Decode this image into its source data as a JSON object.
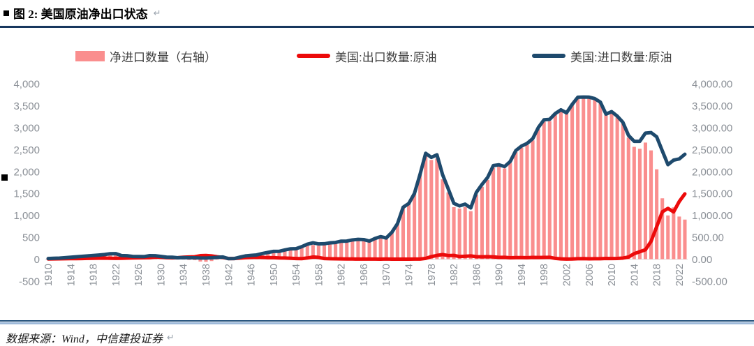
{
  "page": {
    "bullet": "■",
    "title": "图 2: 美国原油净出口状态",
    "return_mark": "↵"
  },
  "legend": {
    "items": [
      {
        "label": "净进口数量（右轴）",
        "type": "bar",
        "color": "#FA8E8E"
      },
      {
        "label": "美国:出口数量:原油",
        "type": "line",
        "color": "#EC0A0A"
      },
      {
        "label": "美国:进口数量:原油",
        "type": "line",
        "color": "#1E4A6D"
      }
    ]
  },
  "footer": {
    "source": "数据来源：Wind，中信建投证券",
    "return_mark": "↵"
  },
  "chart_data": {
    "type": "combo",
    "title": "美国原油净出口状态",
    "grid": "off",
    "legend_position": "top",
    "x_start_year": 1910,
    "x_end_year": 2023,
    "x_tick_labels": [
      "1910",
      "1914",
      "1918",
      "1922",
      "1926",
      "1930",
      "1934",
      "1938",
      "1942",
      "1946",
      "1950",
      "1954",
      "1958",
      "1962",
      "1966",
      "1970",
      "1974",
      "1978",
      "1982",
      "1986",
      "1990",
      "1994",
      "1998",
      "2002",
      "2006",
      "2010",
      "2014",
      "2018",
      "2022"
    ],
    "left_axis": {
      "min": -500,
      "max": 4000,
      "step": 500,
      "ticks": [
        "4,000",
        "3,500",
        "3,000",
        "2,500",
        "2,000",
        "1,500",
        "1,000",
        "500",
        "0",
        "-500"
      ]
    },
    "right_axis": {
      "min": -500,
      "max": 4000,
      "step": 500,
      "ticks": [
        "4,000.00",
        "3,500.00",
        "3,000.00",
        "2,500.00",
        "2,000.00",
        "1,500.00",
        "1,000.00",
        "500.00",
        "0.00",
        "-500.00"
      ]
    },
    "axis_text_color": "#8a8f96",
    "series": [
      {
        "name": "净进口数量（右轴）",
        "type": "bar",
        "axis": "right",
        "color": "#FA8E8E",
        "values": [
          10,
          14,
          17,
          25,
          33,
          42,
          50,
          57,
          65,
          73,
          81,
          105,
          109,
          62,
          53,
          34,
          30,
          26,
          45,
          31,
          17,
          12,
          15,
          -3,
          -9,
          -18,
          -23,
          -53,
          -59,
          -42,
          -12,
          11,
          -3,
          -1,
          20,
          39,
          46,
          52,
          89,
          119,
          143,
          151,
          183,
          216,
          224,
          273,
          314,
          323,
          308,
          337,
          362,
          373,
          405,
          408,
          435,
          449,
          444,
          409,
          470,
          513,
          478,
          612,
          810,
          1183,
          1268,
          1496,
          1932,
          2396,
          2262,
          2294,
          1821,
          1522,
          1186,
          1155,
          1188,
          1094,
          1469,
          1651,
          1808,
          2081,
          2111,
          2069,
          2194,
          2441,
          2542,
          2604,
          2708,
          2963,
          3138,
          3144,
          3302,
          3398,
          3333,
          3524,
          3682,
          3684,
          3684,
          3651,
          3571,
          3291,
          3348,
          3244,
          3095,
          2772,
          2561,
          2517,
          2658,
          2480,
          2049,
          1388,
          997,
          1181,
          972,
          903
        ]
      },
      {
        "name": "美国:出口数量:原油",
        "type": "line",
        "axis": "left",
        "color": "#EC0A0A",
        "values": [
          5,
          6,
          8,
          10,
          12,
          13,
          15,
          18,
          20,
          22,
          25,
          20,
          18,
          20,
          25,
          28,
          30,
          32,
          35,
          48,
          45,
          35,
          30,
          35,
          45,
          50,
          55,
          80,
          85,
          75,
          55,
          40,
          15,
          15,
          25,
          35,
          40,
          45,
          40,
          35,
          35,
          28,
          27,
          20,
          15,
          12,
          28,
          50,
          40,
          15,
          10,
          8,
          6,
          5,
          4,
          3,
          3,
          3,
          2,
          1,
          5,
          1,
          1,
          1,
          1,
          2,
          3,
          18,
          58,
          86,
          105,
          83,
          87,
          60,
          66,
          74,
          56,
          55,
          56,
          52,
          40,
          42,
          32,
          36,
          36,
          35,
          40,
          39,
          40,
          43,
          18,
          7,
          3,
          4,
          10,
          12,
          9,
          10,
          10,
          16,
          15,
          17,
          25,
          49,
          126,
          170,
          216,
          406,
          740,
          1080,
          1158,
          1077,
          1314,
          1489
        ]
      },
      {
        "name": "美国:进口数量:原油",
        "type": "line",
        "axis": "left",
        "color": "#1E4A6D",
        "values": [
          15,
          20,
          25,
          35,
          45,
          55,
          65,
          75,
          85,
          95,
          106,
          125,
          127,
          82,
          78,
          62,
          60,
          58,
          80,
          79,
          62,
          47,
          45,
          32,
          36,
          32,
          32,
          27,
          26,
          33,
          43,
          51,
          12,
          14,
          45,
          74,
          86,
          97,
          129,
          154,
          178,
          179,
          210,
          236,
          239,
          285,
          342,
          373,
          348,
          352,
          372,
          381,
          411,
          413,
          439,
          452,
          447,
          412,
          472,
          514,
          483,
          613,
          811,
          1184,
          1269,
          1498,
          1935,
          2414,
          2320,
          2380,
          1926,
          1605,
          1273,
          1215,
          1254,
          1168,
          1525,
          1706,
          1864,
          2133,
          2151,
          2111,
          2226,
          2477,
          2578,
          2639,
          2748,
          3002,
          3178,
          3187,
          3320,
          3405,
          3336,
          3528,
          3692,
          3696,
          3693,
          3661,
          3581,
          3307,
          3363,
          3261,
          3120,
          2821,
          2687,
          2687,
          2874,
          2886,
          2789,
          2468,
          2155,
          2258,
          2286,
          2392
        ]
      }
    ]
  }
}
